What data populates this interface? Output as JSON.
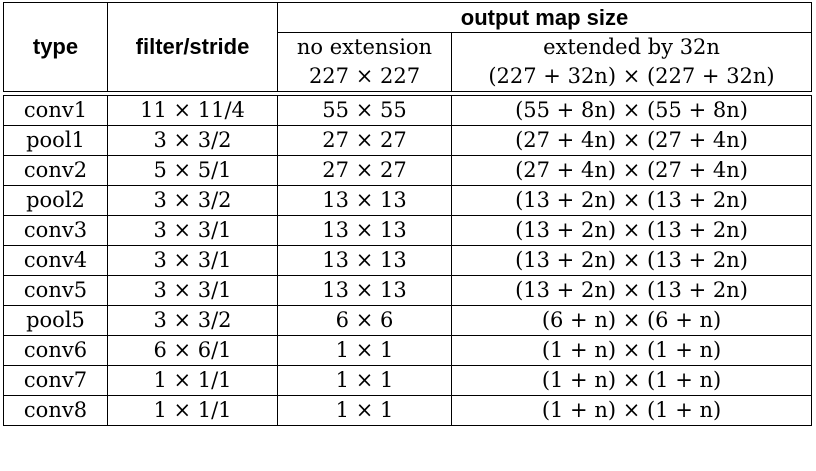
{
  "header": {
    "type": "type",
    "filter_stride": "filter/stride",
    "output_map_size": "output map size",
    "no_extension": "no extension",
    "no_extension_size": "227 × 227",
    "extended": "extended by 32n",
    "extended_size": "(227 + 32n) × (227 + 32n)"
  },
  "rows": [
    {
      "type": "conv1",
      "filter": "11 × 11/4",
      "no_ext": "55 × 55",
      "ext": "(55 + 8n) × (55 + 8n)"
    },
    {
      "type": "pool1",
      "filter": "3 × 3/2",
      "no_ext": "27 × 27",
      "ext": "(27 + 4n) × (27 + 4n)"
    },
    {
      "type": "conv2",
      "filter": "5 × 5/1",
      "no_ext": "27 × 27",
      "ext": "(27 + 4n) × (27 + 4n)"
    },
    {
      "type": "pool2",
      "filter": "3 × 3/2",
      "no_ext": "13 × 13",
      "ext": "(13 + 2n) × (13 + 2n)"
    },
    {
      "type": "conv3",
      "filter": "3 × 3/1",
      "no_ext": "13 × 13",
      "ext": "(13 + 2n) × (13 + 2n)"
    },
    {
      "type": "conv4",
      "filter": "3 × 3/1",
      "no_ext": "13 × 13",
      "ext": "(13 + 2n) × (13 + 2n)"
    },
    {
      "type": "conv5",
      "filter": "3 × 3/1",
      "no_ext": "13 × 13",
      "ext": "(13 + 2n) × (13 + 2n)"
    },
    {
      "type": "pool5",
      "filter": "3 × 3/2",
      "no_ext": "6 × 6",
      "ext": "(6 + n) × (6 + n)"
    },
    {
      "type": "conv6",
      "filter": "6 × 6/1",
      "no_ext": "1 × 1",
      "ext": "(1 + n) × (1 + n)"
    },
    {
      "type": "conv7",
      "filter": "1 × 1/1",
      "no_ext": "1 × 1",
      "ext": "(1 + n) × (1 + n)"
    },
    {
      "type": "conv8",
      "filter": "1 × 1/1",
      "no_ext": "1 × 1",
      "ext": "(1 + n) × (1 + n)"
    }
  ]
}
